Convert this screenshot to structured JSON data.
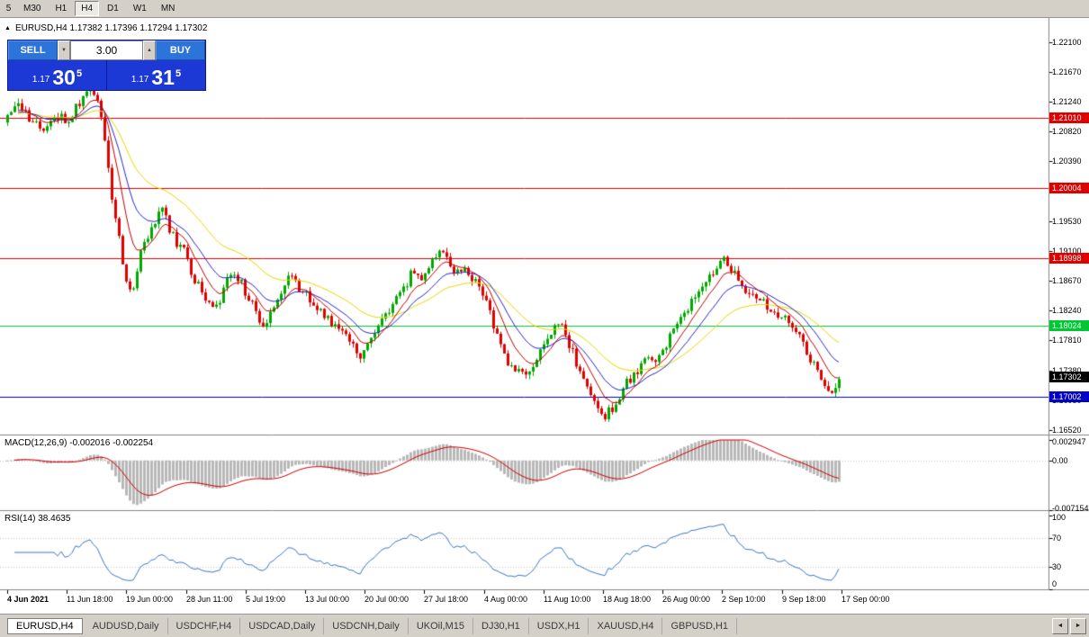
{
  "toolbar": {
    "timeframes": [
      "5",
      "M30",
      "H1",
      "H4",
      "D1",
      "W1",
      "MN"
    ],
    "active": "H4"
  },
  "chart": {
    "symbol_line": "EURUSD,H4 1.17382 1.17396 1.17294 1.17302"
  },
  "trade_panel": {
    "sell_label": "SELL",
    "buy_label": "BUY",
    "volume": "3.00",
    "sell_price": {
      "prefix": "1.17",
      "big": "30",
      "sup": "5"
    },
    "buy_price": {
      "prefix": "1.17",
      "big": "31",
      "sup": "5"
    }
  },
  "indicators": {
    "macd_label": "MACD(12,26,9) -0.002016 -0.002254",
    "rsi_label": "RSI(14) 38.4635"
  },
  "icons": {
    "collapse": "▲",
    "spin_down": "▼",
    "spin_up": "▲",
    "tab_left": "◄",
    "tab_right": "►"
  },
  "tabs": {
    "active": "EURUSD,H4",
    "items": [
      "EURUSD,H4",
      "AUDUSD,Daily",
      "USDCHF,H4",
      "USDCAD,Daily",
      "USDCNH,Daily",
      "UKOil,M15",
      "DJ30,H1",
      "USDX,H1",
      "XAUUSD,H4",
      "GBPUSD,H1"
    ]
  },
  "time_axis": {
    "labels": [
      "4 Jun 2021",
      "11 Jun 18:00",
      "19 Jun 00:00",
      "28 Jun 11:00",
      "5 Jul 19:00",
      "13 Jul 00:00",
      "20 Jul 00:00",
      "27 Jul 18:00",
      "4 Aug 00:00",
      "11 Aug 10:00",
      "18 Aug 18:00",
      "26 Aug 00:00",
      "2 Sep 10:00",
      "9 Sep 18:00",
      "17 Sep 00:00"
    ]
  },
  "chart_data": {
    "type": "candlestick",
    "symbol": "EURUSD",
    "timeframe": "H4",
    "ohlc": {
      "open": 1.17382,
      "high": 1.17396,
      "low": 1.17294,
      "close": 1.17302
    },
    "price_axis_ticks": [
      1.221,
      1.2167,
      1.2124,
      1.2082,
      1.2039,
      1.1953,
      1.191,
      1.1867,
      1.1824,
      1.1781,
      1.1738,
      1.1695,
      1.1652
    ],
    "hlines": [
      {
        "price": 1.2101,
        "color": "#E00000"
      },
      {
        "price": 1.20004,
        "color": "#E00000"
      },
      {
        "price": 1.18998,
        "color": "#E00000"
      },
      {
        "price": 1.18024,
        "color": "#00C832"
      },
      {
        "price": 1.17002,
        "color": "#0000C8"
      }
    ],
    "current_price": 1.17302,
    "candle_count": 232,
    "noise": 0.0016,
    "wick": 0.0007,
    "seed": 97,
    "ma_periods": {
      "red": 8,
      "blue": 16,
      "yellow": 34
    },
    "price_path": [
      [
        0.0,
        1.21
      ],
      [
        0.013,
        1.2122
      ],
      [
        0.028,
        1.2092
      ],
      [
        0.043,
        1.2085
      ],
      [
        0.058,
        1.2106
      ],
      [
        0.072,
        1.2095
      ],
      [
        0.088,
        1.2126
      ],
      [
        0.1,
        1.2138
      ],
      [
        0.11,
        1.2122
      ],
      [
        0.118,
        1.206
      ],
      [
        0.126,
        1.1985
      ],
      [
        0.134,
        1.1928
      ],
      [
        0.142,
        1.187
      ],
      [
        0.15,
        1.185
      ],
      [
        0.16,
        1.1902
      ],
      [
        0.172,
        1.194
      ],
      [
        0.186,
        1.1968
      ],
      [
        0.198,
        1.1932
      ],
      [
        0.212,
        1.1908
      ],
      [
        0.226,
        1.1868
      ],
      [
        0.238,
        1.184
      ],
      [
        0.25,
        1.1822
      ],
      [
        0.262,
        1.1862
      ],
      [
        0.274,
        1.1878
      ],
      [
        0.287,
        1.185
      ],
      [
        0.299,
        1.182
      ],
      [
        0.311,
        1.1798
      ],
      [
        0.324,
        1.1842
      ],
      [
        0.337,
        1.1872
      ],
      [
        0.35,
        1.186
      ],
      [
        0.363,
        1.1838
      ],
      [
        0.376,
        1.182
      ],
      [
        0.389,
        1.1806
      ],
      [
        0.401,
        1.1796
      ],
      [
        0.413,
        1.1778
      ],
      [
        0.426,
        1.176
      ],
      [
        0.438,
        1.1786
      ],
      [
        0.451,
        1.181
      ],
      [
        0.463,
        1.1832
      ],
      [
        0.476,
        1.1856
      ],
      [
        0.488,
        1.1882
      ],
      [
        0.5,
        1.1872
      ],
      [
        0.512,
        1.1898
      ],
      [
        0.524,
        1.1906
      ],
      [
        0.537,
        1.1874
      ],
      [
        0.55,
        1.1888
      ],
      [
        0.562,
        1.1868
      ],
      [
        0.575,
        1.1846
      ],
      [
        0.587,
        1.1792
      ],
      [
        0.599,
        1.1756
      ],
      [
        0.612,
        1.1734
      ],
      [
        0.625,
        1.1728
      ],
      [
        0.639,
        1.1758
      ],
      [
        0.653,
        1.1796
      ],
      [
        0.666,
        1.1802
      ],
      [
        0.678,
        1.1768
      ],
      [
        0.692,
        1.1728
      ],
      [
        0.706,
        1.1698
      ],
      [
        0.72,
        1.1672
      ],
      [
        0.733,
        1.1692
      ],
      [
        0.746,
        1.1722
      ],
      [
        0.76,
        1.1742
      ],
      [
        0.773,
        1.1754
      ],
      [
        0.786,
        1.176
      ],
      [
        0.799,
        1.1792
      ],
      [
        0.812,
        1.1812
      ],
      [
        0.824,
        1.184
      ],
      [
        0.837,
        1.1868
      ],
      [
        0.849,
        1.1884
      ],
      [
        0.861,
        1.1902
      ],
      [
        0.873,
        1.188
      ],
      [
        0.886,
        1.1858
      ],
      [
        0.898,
        1.1842
      ],
      [
        0.91,
        1.1834
      ],
      [
        0.922,
        1.1822
      ],
      [
        0.934,
        1.1812
      ],
      [
        0.946,
        1.1796
      ],
      [
        0.958,
        1.1774
      ],
      [
        0.97,
        1.1742
      ],
      [
        0.982,
        1.1714
      ],
      [
        0.991,
        1.1702
      ],
      [
        1.0,
        1.1731
      ]
    ],
    "macd": {
      "fast": 12,
      "slow": 26,
      "signal": 9,
      "value": -0.002016,
      "signal_value": -0.002254,
      "axis_max": 0.002947,
      "axis_min": -0.007154,
      "axis_labels": [
        {
          "text": "0.002947",
          "value": 0.002947
        },
        {
          "text": "0.00",
          "value": 0
        },
        {
          "text": "-0.007154",
          "value": -0.007154
        }
      ]
    },
    "rsi": {
      "period": 14,
      "value": 38.4635,
      "levels": [
        70,
        30
      ],
      "axis_labels": [
        {
          "text": "100",
          "value": 100
        },
        {
          "text": "70",
          "value": 70
        },
        {
          "text": "30",
          "value": 30
        },
        {
          "text": "0",
          "value": 0
        }
      ]
    },
    "colors": {
      "up": "#00A800",
      "down": "#E00000",
      "ma_red": "#C00000",
      "ma_blue": "#2828C8",
      "ma_yellow": "#EAD800",
      "macd_hist": "#B8B8B8",
      "macd_signal": "#D00000",
      "rsi_line": "#3C78C8",
      "grid_silver": "#C8C8C8",
      "separator": "#848484",
      "current_badge_bg": "#000000"
    }
  }
}
